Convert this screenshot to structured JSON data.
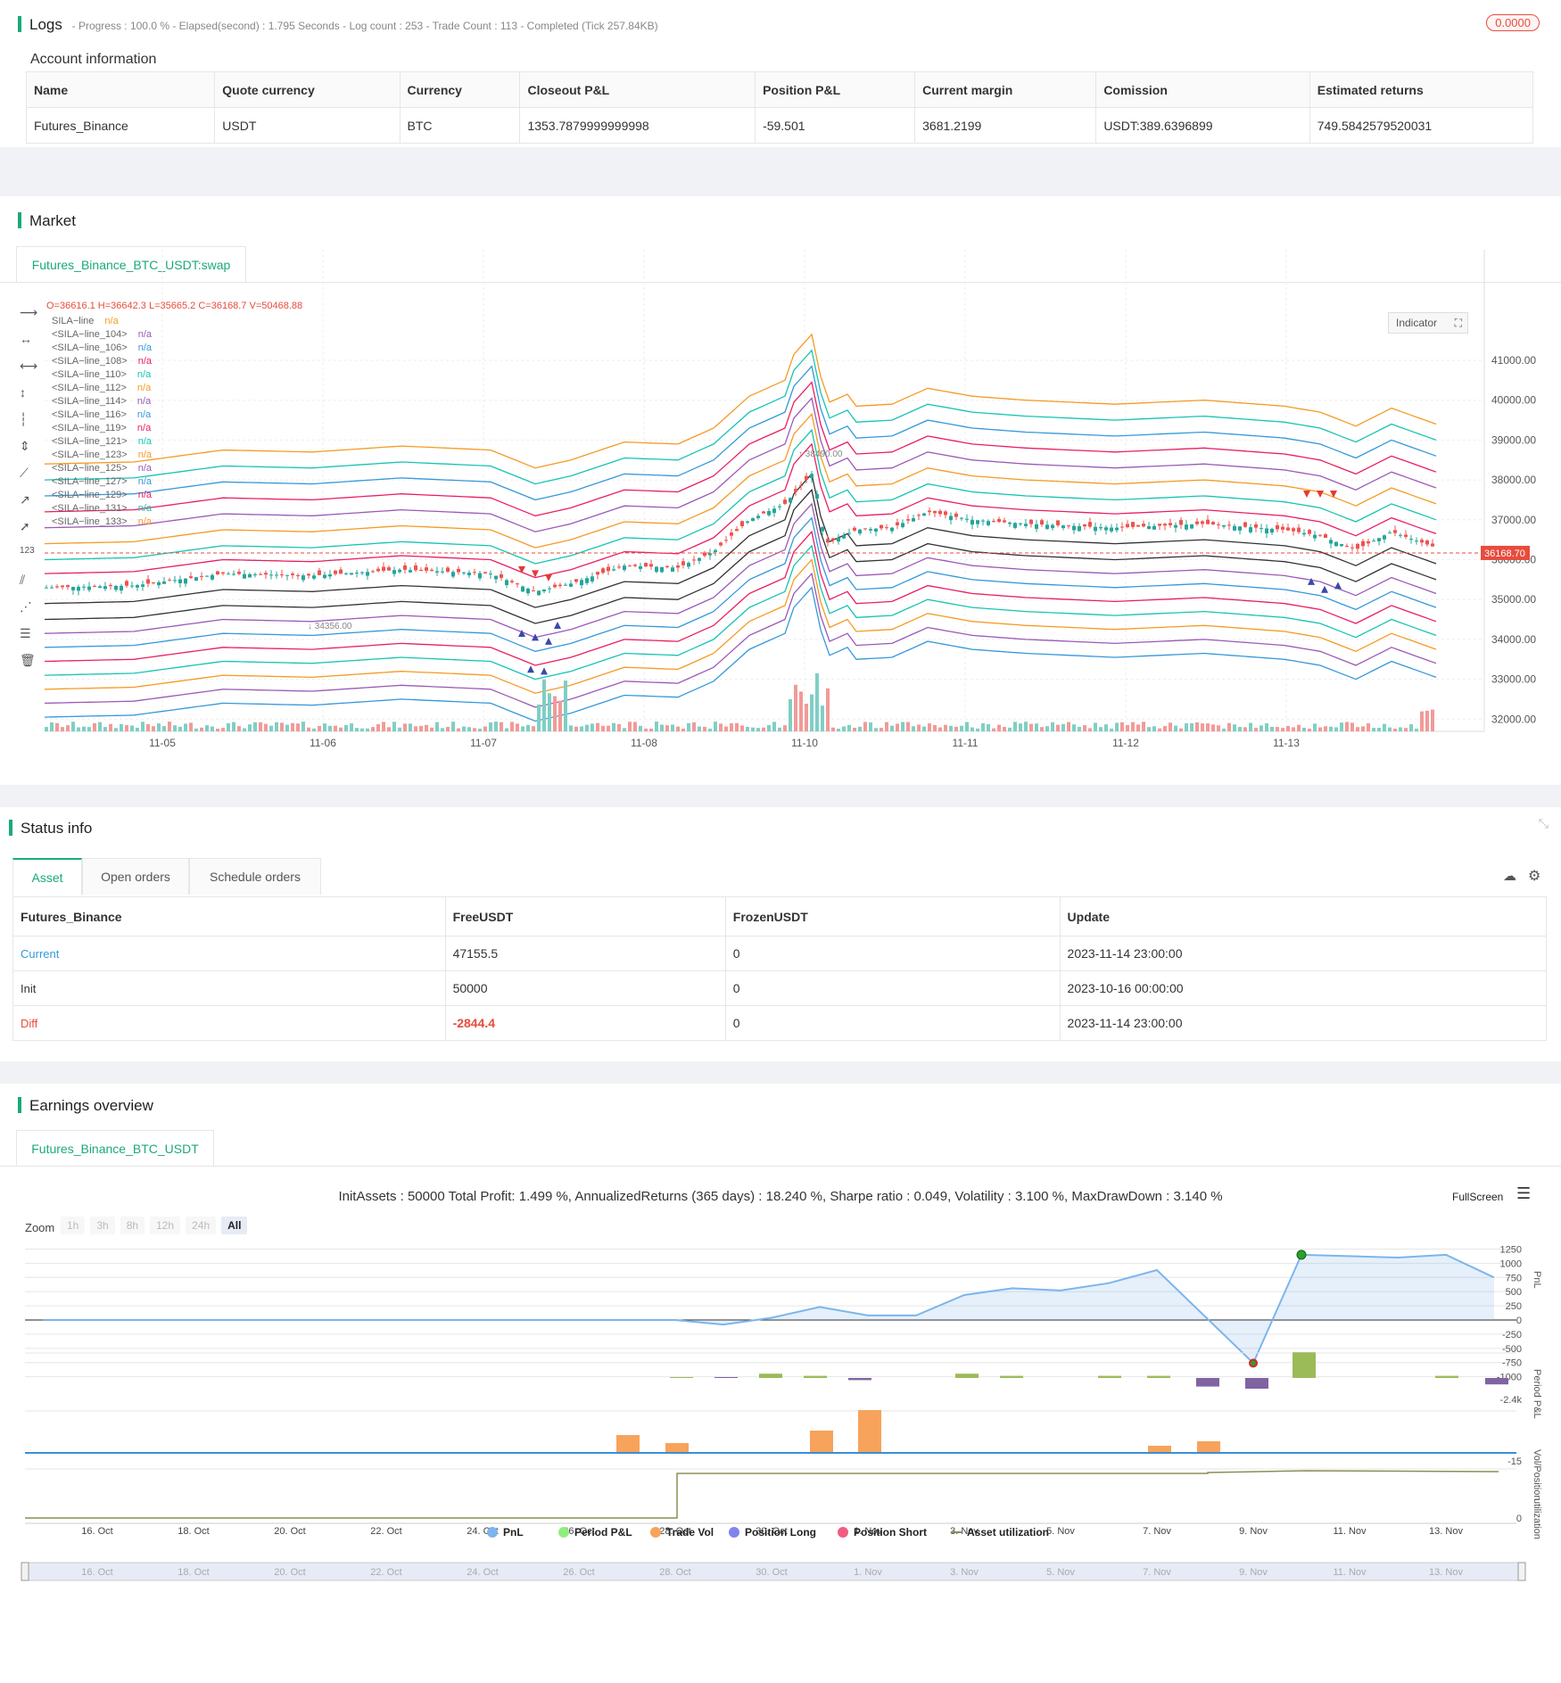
{
  "logs": {
    "title": "Logs",
    "meta": "- Progress : 100.0 % - Elapsed(second) : 1.795  Seconds - Log count : 253 - Trade Count : 113 - Completed (Tick 257.84KB)",
    "badge": "0.0000"
  },
  "account": {
    "title": "Account information",
    "headers": [
      "Name",
      "Quote currency",
      "Currency",
      "Closeout P&L",
      "Position P&L",
      "Current margin",
      "Comission",
      "Estimated returns"
    ],
    "row": [
      "Futures_Binance",
      "USDT",
      "BTC",
      "1353.7879999999998",
      "-59.501",
      "3681.2199",
      "USDT:389.6396899",
      "749.5842579520031"
    ]
  },
  "market": {
    "title": "Market",
    "tab": "Futures_Binance_BTC_USDT:swap",
    "ohlc": "O=36616.1 H=36642.3 L=35665.2 C=36168.7 V=50468.88",
    "indicator_btn": "Indicator",
    "last_price": "36168.70",
    "high_label": "38490.00",
    "low_label": "34356.00",
    "legend": [
      {
        "name": "SILA−line",
        "val": "n/a",
        "color": "#f59a23"
      },
      {
        "name": "<SILA−line_104>",
        "val": "n/a",
        "color": "#9b59b6"
      },
      {
        "name": "<SILA−line_106>",
        "val": "n/a",
        "color": "#3498db"
      },
      {
        "name": "<SILA−line_108>",
        "val": "n/a",
        "color": "#e91e63"
      },
      {
        "name": "<SILA−line_110>",
        "val": "n/a",
        "color": "#17c3b2"
      },
      {
        "name": "<SILA−line_112>",
        "val": "n/a",
        "color": "#f59a23"
      },
      {
        "name": "<SILA−line_114>",
        "val": "n/a",
        "color": "#9b59b6"
      },
      {
        "name": "<SILA−line_116>",
        "val": "n/a",
        "color": "#3498db"
      },
      {
        "name": "<SILA−line_119>",
        "val": "n/a",
        "color": "#e91e63"
      },
      {
        "name": "<SILA−line_121>",
        "val": "n/a",
        "color": "#17c3b2"
      },
      {
        "name": "<SILA−line_123>",
        "val": "n/a",
        "color": "#f59a23"
      },
      {
        "name": "<SILA−line_125>",
        "val": "n/a",
        "color": "#9b59b6"
      },
      {
        "name": "<SILA−line_127>",
        "val": "n/a",
        "color": "#3498db"
      },
      {
        "name": "<SILA−line_129>",
        "val": "n/a",
        "color": "#e91e63"
      },
      {
        "name": "<SILA−line_131>",
        "val": "n/a",
        "color": "#17c3b2"
      },
      {
        "name": "<SILA−line_133>",
        "val": "n/a",
        "color": "#f59a23"
      }
    ],
    "y_ticks": [
      "41000.00",
      "40000.00",
      "39000.00",
      "38000.00",
      "37000.00",
      "36000.00",
      "35000.00",
      "34000.00",
      "33000.00",
      "32000.00"
    ],
    "x_ticks": [
      "11-05",
      "11-06",
      "11-07",
      "11-08",
      "11-10",
      "11-11",
      "11-12",
      "11-13"
    ]
  },
  "status": {
    "title": "Status info",
    "tabs": [
      "Asset",
      "Open orders",
      "Schedule orders"
    ],
    "headers": [
      "Futures_Binance",
      "FreeUSDT",
      "FrozenUSDT",
      "Update"
    ],
    "rows": [
      [
        "Current",
        "47155.5",
        "0",
        "2023-11-14 23:00:00"
      ],
      [
        "Init",
        "50000",
        "0",
        "2023-10-16 00:00:00"
      ],
      [
        "Diff",
        "-2844.4",
        "0",
        "2023-11-14 23:00:00"
      ]
    ]
  },
  "earnings": {
    "title": "Earnings overview",
    "tab": "Futures_Binance_BTC_USDT",
    "summary": "InitAssets : 50000 Total Profit: 1.499 %, AnnualizedReturns (365 days) : 18.240 %, Sharpe ratio : 0.049, Volatility : 3.100 %, MaxDrawDown : 3.140 %",
    "fullscreen": "FullScreen",
    "zoom_label": "Zoom",
    "zoom_buttons": [
      "1h",
      "3h",
      "8h",
      "12h",
      "24h",
      "All"
    ],
    "pnl_ticks": [
      "1250",
      "1000",
      "750",
      "500",
      "250",
      "0",
      "-250",
      "-500",
      "-750",
      "-1000"
    ],
    "axis_labels": [
      "PnL",
      "Period P&L",
      "Vol/Position",
      "utilization"
    ],
    "period_tick": "-2.4k",
    "vol_tick": "-15",
    "util_tick": "0",
    "x_ticks": [
      "16. Oct",
      "18. Oct",
      "20. Oct",
      "22. Oct",
      "24. Oct",
      "26. Oct",
      "28. Oct",
      "30. Oct",
      "1. Nov",
      "3. Nov",
      "5. Nov",
      "7. Nov",
      "9. Nov",
      "11. Nov",
      "13. Nov"
    ],
    "legend": [
      {
        "name": "PnL",
        "color": "#7cb5ec"
      },
      {
        "name": "Period P&L",
        "color": "#90ed7d"
      },
      {
        "name": "Trade Vol",
        "color": "#f7a35c"
      },
      {
        "name": "Position Long",
        "color": "#8085e9"
      },
      {
        "name": "Position Short",
        "color": "#f15c80"
      },
      {
        "name": "Asset utilization",
        "color": "#8d8d55"
      }
    ]
  },
  "chart_data": {
    "type": "line",
    "title": "",
    "xlabel": "",
    "ylabel": "PnL",
    "x": [
      "16. Oct",
      "18. Oct",
      "20. Oct",
      "22. Oct",
      "24. Oct",
      "26. Oct",
      "28. Oct",
      "29. Oct",
      "30. Oct",
      "31. Oct",
      "1. Nov",
      "2. Nov",
      "3. Nov",
      "4. Nov",
      "5. Nov",
      "6. Nov",
      "7. Nov",
      "9. Nov",
      "10. Nov",
      "12. Nov",
      "13. Nov",
      "14. Nov"
    ],
    "series": [
      {
        "name": "PnL",
        "values": [
          0,
          0,
          0,
          0,
          0,
          0,
          0,
          -80,
          40,
          230,
          80,
          80,
          440,
          560,
          520,
          650,
          880,
          -760,
          1150,
          1100,
          1150,
          750
        ]
      }
    ],
    "ylim": [
      -1000,
      1250
    ]
  }
}
